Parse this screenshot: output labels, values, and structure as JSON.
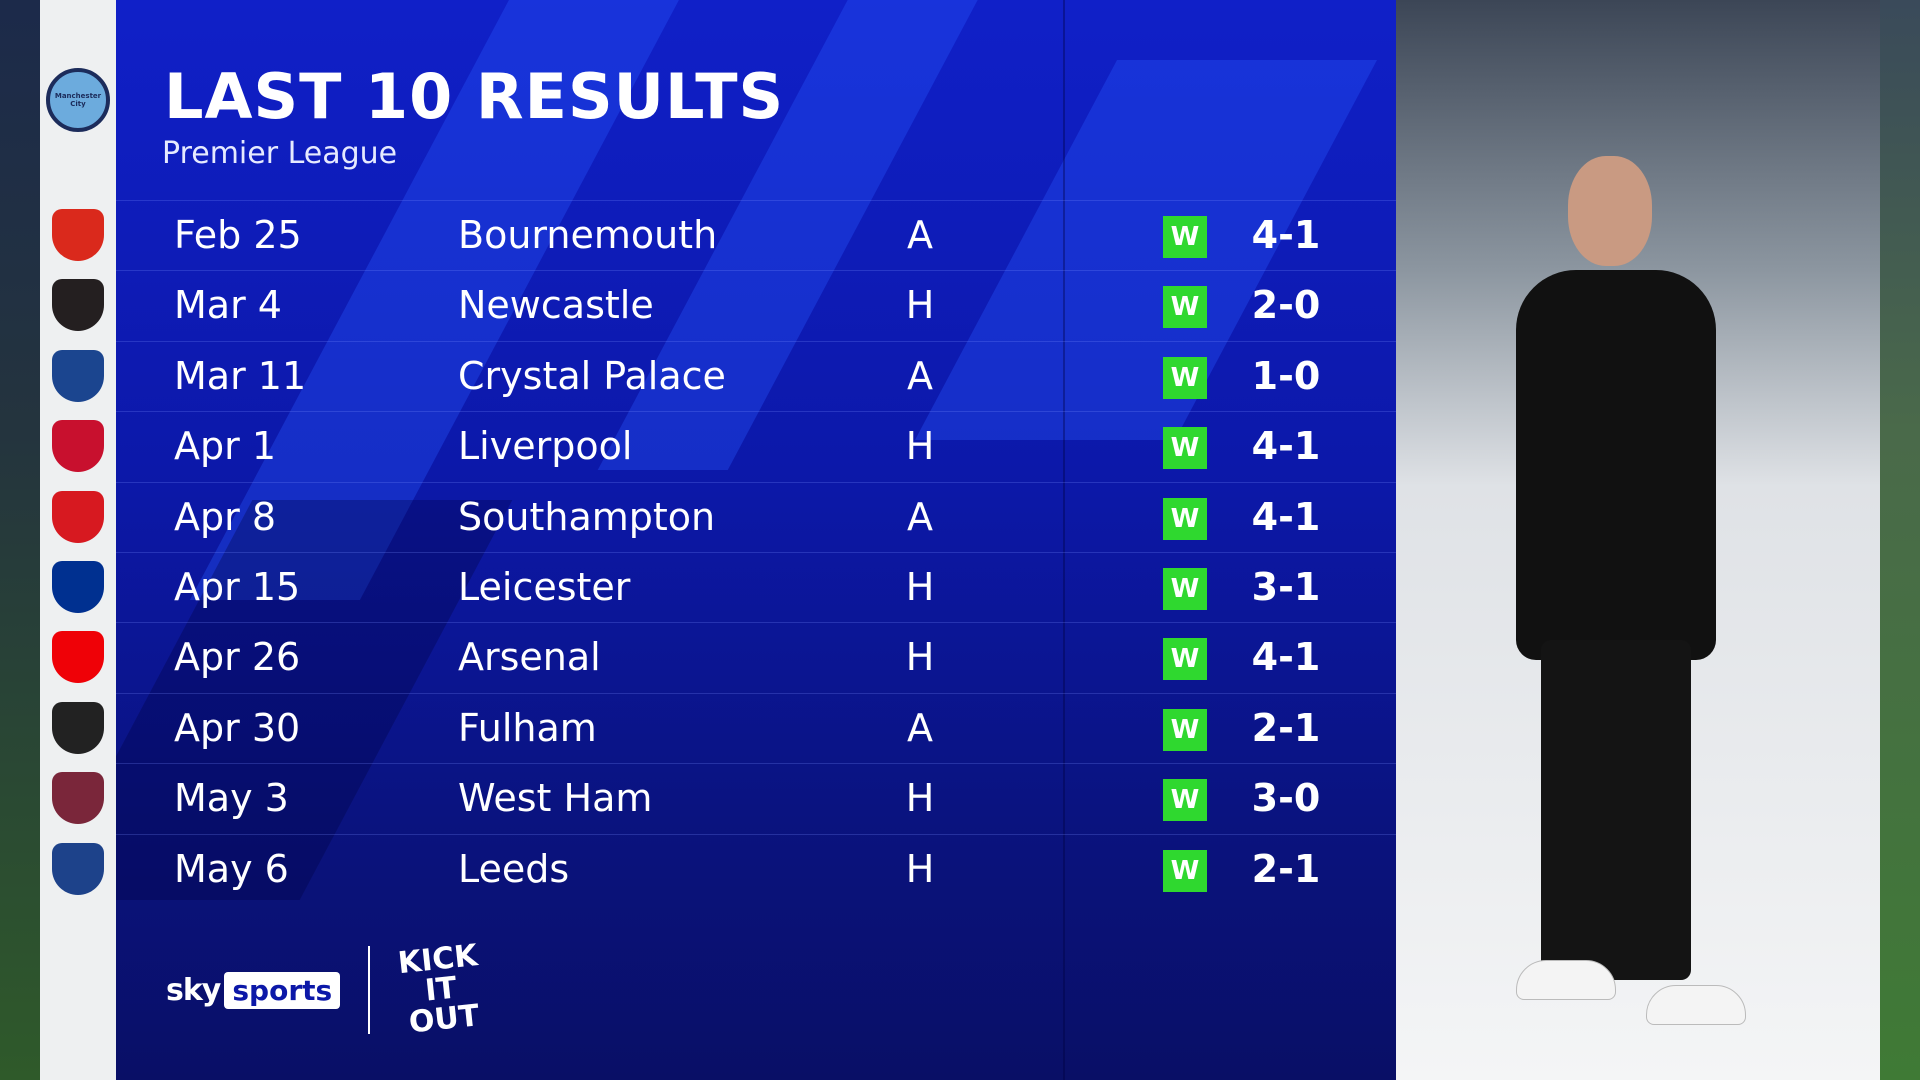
{
  "header": {
    "title": "LAST 10 RESULTS",
    "subtitle": "Premier League",
    "team_badge": "Manchester City"
  },
  "columns": [
    "date",
    "opponent",
    "venue",
    "result",
    "score"
  ],
  "results": [
    {
      "date": "Feb 25",
      "opponent": "Bournemouth",
      "venue": "A",
      "result": "W",
      "score": "4-1",
      "badge_color": "#da291c"
    },
    {
      "date": "Mar 4",
      "opponent": "Newcastle",
      "venue": "H",
      "result": "W",
      "score": "2-0",
      "badge_color": "#241f20"
    },
    {
      "date": "Mar 11",
      "opponent": "Crystal Palace",
      "venue": "A",
      "result": "W",
      "score": "1-0",
      "badge_color": "#1b458f"
    },
    {
      "date": "Apr 1",
      "opponent": "Liverpool",
      "venue": "H",
      "result": "W",
      "score": "4-1",
      "badge_color": "#c8102e"
    },
    {
      "date": "Apr 8",
      "opponent": "Southampton",
      "venue": "A",
      "result": "W",
      "score": "4-1",
      "badge_color": "#d71920"
    },
    {
      "date": "Apr 15",
      "opponent": "Leicester",
      "venue": "H",
      "result": "W",
      "score": "3-1",
      "badge_color": "#003090"
    },
    {
      "date": "Apr 26",
      "opponent": "Arsenal",
      "venue": "H",
      "result": "W",
      "score": "4-1",
      "badge_color": "#ef0107"
    },
    {
      "date": "Apr 30",
      "opponent": "Fulham",
      "venue": "A",
      "result": "W",
      "score": "2-1",
      "badge_color": "#222222"
    },
    {
      "date": "May 3",
      "opponent": "West Ham",
      "venue": "H",
      "result": "W",
      "score": "3-0",
      "badge_color": "#7a263a"
    },
    {
      "date": "May 6",
      "opponent": "Leeds",
      "venue": "H",
      "result": "W",
      "score": "2-1",
      "badge_color": "#1d428a"
    }
  ],
  "colors": {
    "win": "#2fd82f",
    "panel": "#0c18a8"
  },
  "footer": {
    "brand_sky": "sky",
    "brand_sports": "sports",
    "campaign_logo": "KICK IT OUT"
  }
}
